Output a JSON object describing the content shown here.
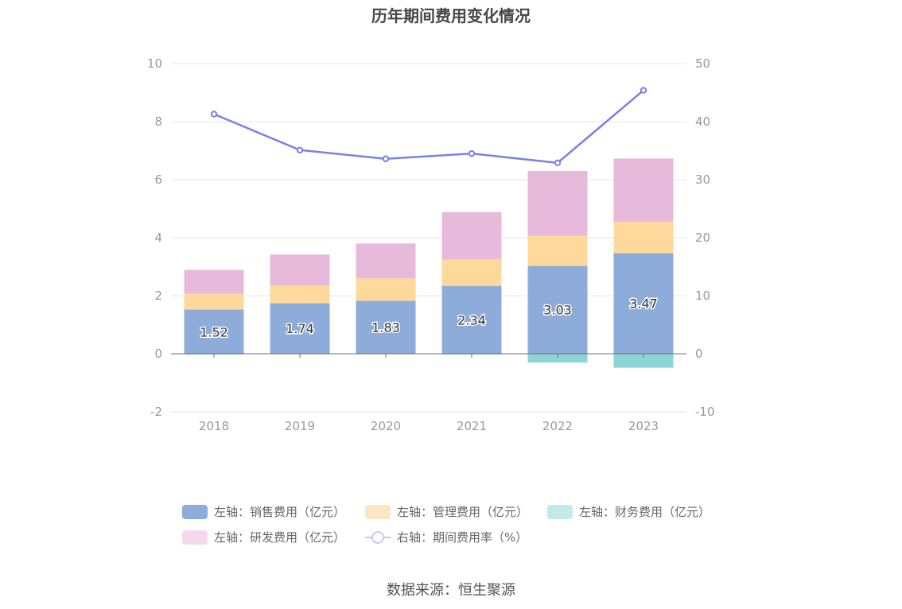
{
  "title": "历年期间费用变化情况",
  "source": "数据来源：恒生聚源",
  "colors": {
    "sales": "#8eacd9",
    "admin": "#ffd99c",
    "finance": "#8dd5d5",
    "rd": "#e7b9db",
    "rate": "#7b7fea",
    "grid": "#e3e5f5",
    "axis_text": "#999999"
  },
  "legend": [
    {
      "label": "左轴：销售费用（亿元）",
      "color": "#8eacd9",
      "type": "box"
    },
    {
      "label": "左轴：管理费用（亿元）",
      "color": "#fde6c4",
      "type": "box"
    },
    {
      "label": "左轴：财务费用（亿元）",
      "color": "#c4e9ea",
      "type": "box"
    },
    {
      "label": "左轴：研发费用（亿元）",
      "color": "#f3d9ec",
      "type": "box"
    },
    {
      "label": "右轴：期间费用率（%）",
      "color": "#c6c8f6",
      "type": "line"
    }
  ],
  "chart_data": {
    "type": "bar",
    "stacked": true,
    "categories": [
      "2018",
      "2019",
      "2020",
      "2021",
      "2022",
      "2023"
    ],
    "series": [
      {
        "name": "左轴：销售费用（亿元）",
        "axis": "left",
        "values": [
          1.52,
          1.74,
          1.83,
          2.34,
          3.03,
          3.47
        ],
        "labels": [
          "1.52",
          "1.74",
          "1.83",
          "2.34",
          "3.03",
          "3.47"
        ]
      },
      {
        "name": "左轴：管理费用（亿元）",
        "axis": "left",
        "values": [
          0.55,
          0.63,
          0.77,
          0.91,
          1.04,
          1.08
        ]
      },
      {
        "name": "左轴：财务费用（亿元）",
        "axis": "left",
        "values": [
          -0.02,
          -0.01,
          -0.01,
          -0.02,
          -0.3,
          -0.48
        ]
      },
      {
        "name": "左轴：研发费用（亿元）",
        "axis": "left",
        "values": [
          0.82,
          1.05,
          1.2,
          1.63,
          2.23,
          2.18
        ]
      },
      {
        "name": "右轴：期间费用率（%）",
        "axis": "right",
        "type": "line",
        "values": [
          41.3,
          35.1,
          33.6,
          34.5,
          32.9,
          45.4
        ]
      }
    ],
    "left_axis": {
      "ticks": [
        -2,
        0,
        2,
        4,
        6,
        8,
        10
      ],
      "range": [
        -2,
        10
      ]
    },
    "right_axis": {
      "ticks": [
        -10,
        0,
        10,
        20,
        30,
        40,
        50
      ],
      "range": [
        -10,
        50
      ]
    },
    "grid": true,
    "legend_position": "bottom"
  }
}
